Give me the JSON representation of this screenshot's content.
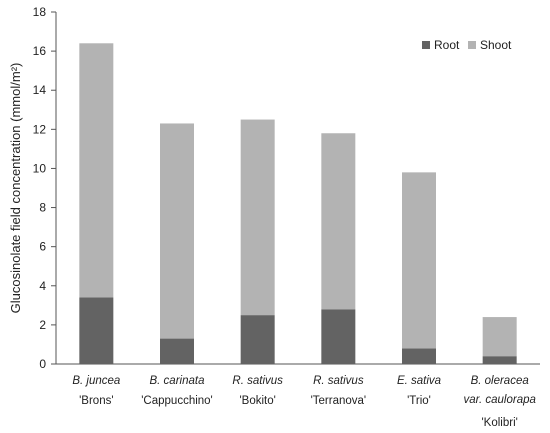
{
  "chart_data": {
    "type": "bar",
    "stacked": true,
    "ylabel": "Glucosinolate field concentration (mmol/m²)",
    "ylim": [
      0,
      18
    ],
    "yticks": [
      "0",
      "2",
      "4",
      "6",
      "8",
      "10",
      "12",
      "14",
      "16",
      "18"
    ],
    "grid": false,
    "legend_position": "top-right",
    "categories": [
      {
        "lines": [
          "B. juncea",
          "'Brons'"
        ]
      },
      {
        "lines": [
          "B. carinata",
          "'Cappucchino'"
        ]
      },
      {
        "lines": [
          "R. sativus",
          "'Bokito'"
        ]
      },
      {
        "lines": [
          "R. sativus",
          "'Terranova'"
        ]
      },
      {
        "lines": [
          "E. sativa",
          "'Trio'"
        ]
      },
      {
        "lines": [
          "B. oleracea",
          "var. caulorapa",
          "'Kolibri'"
        ]
      }
    ],
    "series": [
      {
        "name": "Root",
        "color": "#636363",
        "values": [
          3.4,
          1.3,
          2.5,
          2.8,
          0.8,
          0.4
        ]
      },
      {
        "name": "Shoot",
        "color": "#b3b3b3",
        "values": [
          13.0,
          11.0,
          10.0,
          9.0,
          9.0,
          2.0
        ]
      }
    ]
  }
}
